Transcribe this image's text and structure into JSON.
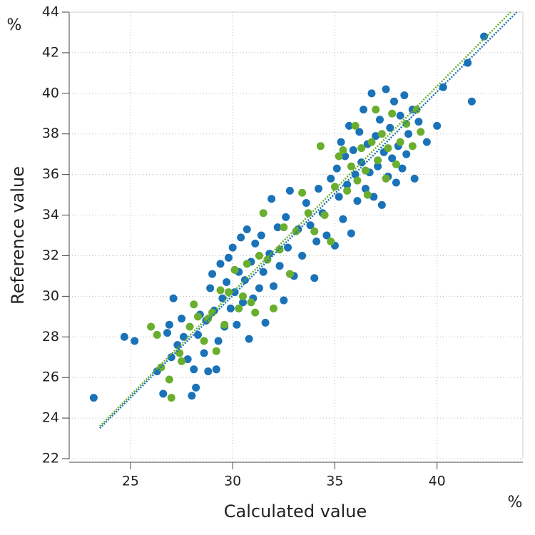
{
  "chart_data": {
    "type": "scatter",
    "y_unit": "%",
    "x_unit": "%",
    "ylabel": "Reference value",
    "xlabel": "Calculated value",
    "xlim": [
      22,
      44.2
    ],
    "ylim": [
      22,
      44
    ],
    "xticks": [
      25,
      30,
      35,
      40
    ],
    "yticks": [
      22,
      24,
      26,
      28,
      30,
      32,
      34,
      36,
      38,
      40,
      42,
      44
    ],
    "grid": true,
    "series": [
      {
        "color": "#1a72b8",
        "x": [
          23.2,
          24.7,
          25.2,
          26.3,
          26.6,
          26.8,
          26.9,
          27.0,
          27.1,
          27.3,
          27.5,
          27.6,
          27.8,
          28.0,
          28.1,
          28.2,
          28.3,
          28.4,
          28.6,
          28.7,
          28.8,
          28.9,
          29.0,
          29.1,
          29.2,
          29.3,
          29.4,
          29.5,
          29.6,
          29.7,
          29.8,
          29.9,
          30.0,
          30.1,
          30.2,
          30.3,
          30.4,
          30.5,
          30.6,
          30.7,
          30.8,
          30.9,
          31.0,
          31.1,
          31.3,
          31.4,
          31.5,
          31.6,
          31.8,
          31.9,
          32.0,
          32.2,
          32.3,
          32.5,
          32.6,
          32.7,
          32.8,
          33.0,
          33.2,
          33.4,
          33.6,
          33.8,
          34.0,
          34.1,
          34.2,
          34.4,
          34.6,
          34.8,
          35.0,
          35.1,
          35.2,
          35.3,
          35.4,
          35.5,
          35.6,
          35.7,
          35.8,
          35.9,
          36.0,
          36.1,
          36.2,
          36.3,
          36.4,
          36.5,
          36.6,
          36.7,
          36.8,
          36.9,
          37.0,
          37.1,
          37.2,
          37.3,
          37.4,
          37.5,
          37.6,
          37.7,
          37.8,
          37.9,
          38.0,
          38.1,
          38.2,
          38.3,
          38.4,
          38.5,
          38.6,
          38.8,
          38.9,
          39.1,
          39.5,
          40.0,
          40.3,
          41.5,
          41.7,
          42.3
        ],
        "y": [
          25.0,
          28.0,
          27.8,
          26.3,
          25.2,
          28.2,
          28.6,
          27.0,
          29.9,
          27.6,
          28.9,
          28.0,
          26.9,
          25.1,
          26.4,
          25.5,
          28.1,
          29.1,
          27.2,
          28.8,
          26.3,
          30.4,
          31.1,
          29.3,
          26.4,
          27.8,
          31.6,
          29.9,
          28.5,
          30.7,
          31.9,
          29.4,
          32.4,
          30.2,
          28.6,
          31.2,
          32.9,
          29.7,
          30.8,
          33.3,
          27.9,
          31.7,
          29.9,
          32.6,
          30.4,
          33.0,
          31.2,
          28.7,
          32.1,
          34.8,
          30.5,
          33.4,
          31.5,
          29.8,
          33.9,
          32.4,
          35.2,
          31.0,
          33.3,
          32.0,
          34.6,
          33.5,
          30.9,
          32.7,
          35.3,
          34.1,
          33.0,
          35.8,
          32.5,
          36.3,
          34.9,
          37.6,
          33.8,
          36.9,
          35.5,
          38.4,
          33.1,
          37.2,
          36.0,
          34.7,
          38.1,
          36.6,
          39.2,
          35.3,
          37.5,
          36.1,
          40.0,
          34.9,
          37.9,
          36.4,
          38.7,
          34.5,
          37.1,
          40.2,
          35.9,
          38.3,
          36.8,
          39.6,
          35.6,
          37.4,
          38.9,
          36.3,
          39.9,
          37.0,
          38.0,
          39.2,
          35.8,
          38.6,
          37.6,
          38.4,
          40.3,
          41.5,
          39.6,
          42.8
        ]
      },
      {
        "color": "#6aae2e",
        "x": [
          26.0,
          26.3,
          26.5,
          26.9,
          27.0,
          27.4,
          27.5,
          27.9,
          28.1,
          28.3,
          28.6,
          28.8,
          29.0,
          29.2,
          29.4,
          29.6,
          29.8,
          30.1,
          30.3,
          30.5,
          30.7,
          30.9,
          31.1,
          31.3,
          31.5,
          31.7,
          32.0,
          32.3,
          32.5,
          32.8,
          33.1,
          33.4,
          33.7,
          34.0,
          34.3,
          34.5,
          34.8,
          35.0,
          35.2,
          35.4,
          35.6,
          35.8,
          36.0,
          36.1,
          36.3,
          36.5,
          36.6,
          36.8,
          37.0,
          37.1,
          37.3,
          37.5,
          37.6,
          37.8,
          38.0,
          38.2,
          38.5,
          38.8,
          39.0,
          39.2
        ],
        "y": [
          28.5,
          28.1,
          26.5,
          25.9,
          25.0,
          27.2,
          26.8,
          28.5,
          29.6,
          29.0,
          27.8,
          28.9,
          29.2,
          27.3,
          30.3,
          28.6,
          30.2,
          31.3,
          29.4,
          30.0,
          31.6,
          29.7,
          29.2,
          32.0,
          34.1,
          31.8,
          29.4,
          32.3,
          33.4,
          31.1,
          33.2,
          35.1,
          34.1,
          33.2,
          37.4,
          34.0,
          32.7,
          35.4,
          36.9,
          37.2,
          35.2,
          36.4,
          38.4,
          35.7,
          37.3,
          36.2,
          35.0,
          37.6,
          39.2,
          36.7,
          38.0,
          35.8,
          37.3,
          39.0,
          36.5,
          37.6,
          38.5,
          37.4,
          39.2,
          38.1
        ]
      }
    ],
    "fit_lines": [
      {
        "color": "#1a72b8",
        "x": [
          23.5,
          43.9
        ],
        "y": [
          23.5,
          44
        ]
      },
      {
        "color": "#6aae2e",
        "x": [
          23.5,
          43.6
        ],
        "y": [
          23.6,
          44
        ]
      }
    ]
  }
}
